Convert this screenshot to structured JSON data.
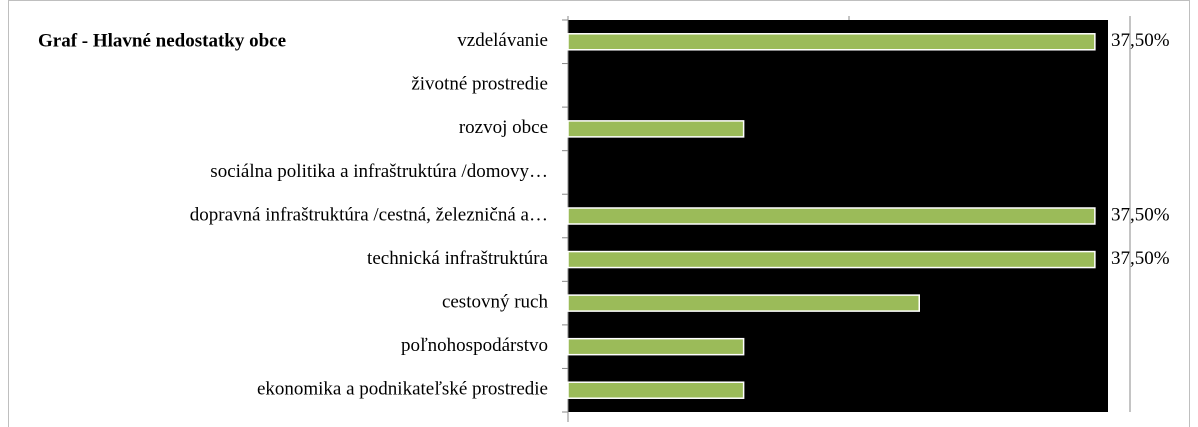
{
  "chart_data": {
    "type": "barh",
    "title": "Graf - Hlavné nedostatky obce",
    "categories": [
      "vzdelávanie",
      "životné prostredie",
      "rozvoj obce",
      "sociálna politika a infraštruktúra /domovy…",
      "dopravná infraštruktúra /cestná, železničná a…",
      "technická infraštruktúra",
      "cestovný ruch",
      "poľnohospodárstvo",
      "ekonomika a podnikateľské prostredie"
    ],
    "values": [
      37.5,
      0,
      12.5,
      0,
      37.5,
      37.5,
      25,
      12.5,
      12.5
    ],
    "value_labels": [
      "37,50%",
      null,
      null,
      null,
      "37,50%",
      "37,50%",
      null,
      null,
      null
    ],
    "color": "#9bbb59",
    "xlim": [
      0,
      40
    ],
    "xticks": [
      0,
      20,
      40
    ]
  }
}
